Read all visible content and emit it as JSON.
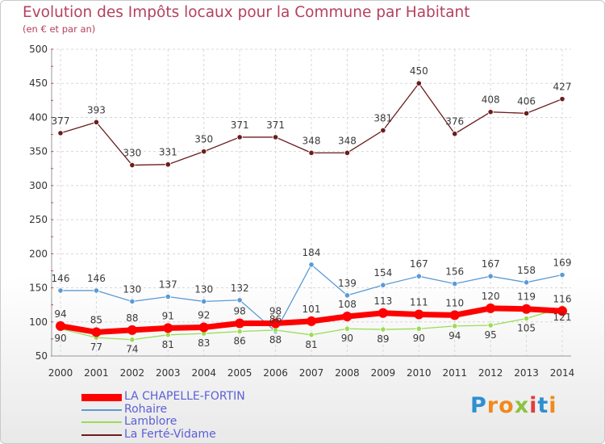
{
  "title": "Evolution des Impôts locaux pour la Commune par Habitant",
  "subtitle": "(en € et par an)",
  "brand": {
    "letters": [
      {
        "ch": "P",
        "color": "#2e8fd1"
      },
      {
        "ch": "r",
        "color": "#f08a1c"
      },
      {
        "ch": "o",
        "color": "#f08a1c"
      },
      {
        "ch": "x",
        "color": "#8cc33f"
      },
      {
        "ch": "i",
        "color": "#e13c3c"
      },
      {
        "ch": "t",
        "color": "#2e8fd1"
      },
      {
        "ch": "i",
        "color": "#f08a1c"
      }
    ]
  },
  "chart_data": {
    "type": "line",
    "title": "Evolution des Impôts locaux pour la Commune par Habitant",
    "subtitle": "(en € et par an)",
    "x": [
      2000,
      2001,
      2002,
      2003,
      2004,
      2005,
      2006,
      2007,
      2008,
      2009,
      2010,
      2011,
      2012,
      2013,
      2014
    ],
    "ylim": [
      50,
      500
    ],
    "yticks": [
      50,
      100,
      150,
      200,
      250,
      300,
      350,
      400,
      450,
      500
    ],
    "grid": true,
    "legend_position": "bottom-left",
    "series": [
      {
        "name": "LA CHAPELLE-FORTIN",
        "color": "#ff0000",
        "values": [
          94,
          85,
          88,
          91,
          92,
          98,
          98,
          101,
          108,
          113,
          111,
          110,
          120,
          119,
          116
        ]
      },
      {
        "name": "Rohaire",
        "color": "#5b9bd5",
        "values": [
          146,
          146,
          130,
          137,
          130,
          132,
          86,
          184,
          139,
          154,
          167,
          156,
          167,
          158,
          169
        ]
      },
      {
        "name": "Lamblore",
        "color": "#99dd55",
        "values": [
          90,
          77,
          74,
          81,
          83,
          86,
          88,
          81,
          90,
          89,
          90,
          94,
          95,
          105,
          121
        ]
      },
      {
        "name": "La Ferté-Vidame",
        "color": "#6b1c1c",
        "values": [
          377,
          393,
          330,
          331,
          350,
          371,
          371,
          348,
          348,
          381,
          450,
          376,
          408,
          406,
          427
        ]
      }
    ]
  }
}
